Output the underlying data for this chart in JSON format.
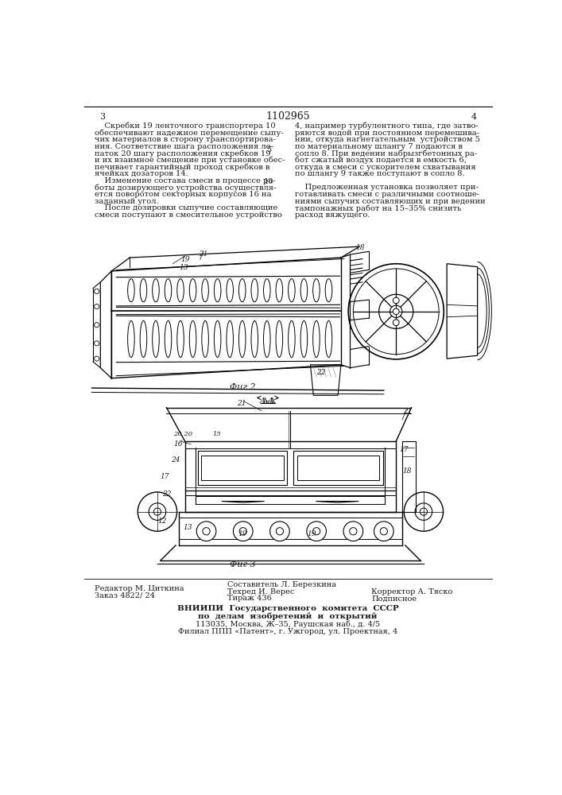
{
  "page_number_center": "1102965",
  "page_number_left": "3",
  "page_number_right": "4",
  "fig2_label": "Фиг 2",
  "fig3_label": "Фиг 3",
  "footer_left1": "Редактор М. Циткина",
  "footer_left2": "Заказ 4822/ 24",
  "footer_mid1": "Составитель Л. Березкина",
  "footer_mid2": "Техред И. Верес",
  "footer_mid3": "Тираж 436",
  "footer_right1": "Корректор А. Тяско",
  "footer_right2": "Подписное",
  "footer_vniipii1": "ВНИИПИ  Государственного  комитета  СССР",
  "footer_vniipii2": "по  делам  изобретений  и  открытий",
  "footer_vniipii3": "113035, Москва, Ж–35, Раушская наб., д. 4/5",
  "footer_vniipii4": "Филиал ППП «Патент», г. Ужгород, ул. Проектная, 4",
  "bg_color": "#ffffff",
  "text_color": "#1a1a1a",
  "line_color": "#000000"
}
